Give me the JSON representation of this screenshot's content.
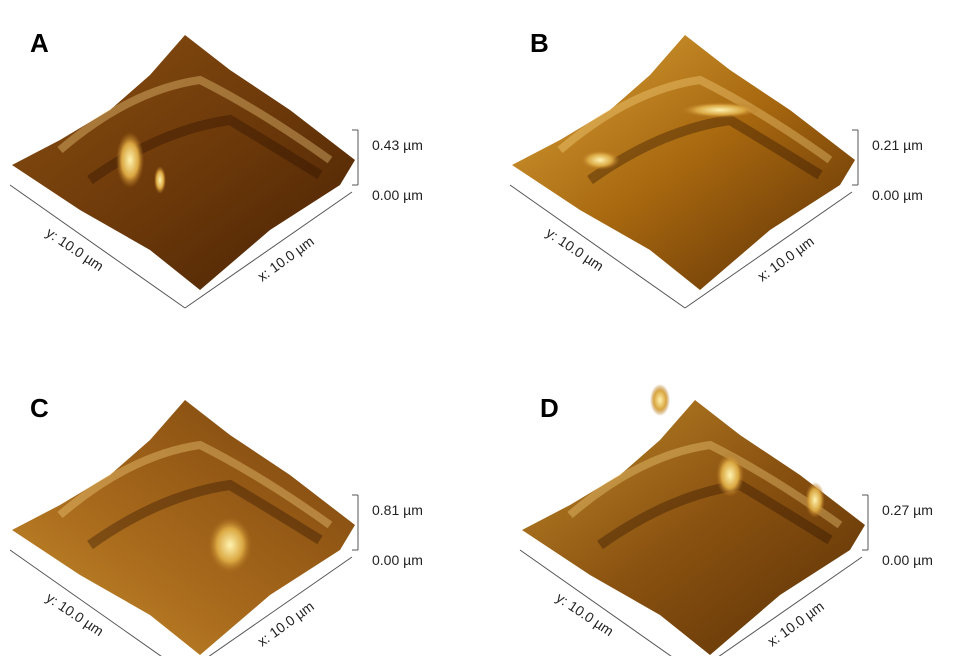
{
  "panels": [
    {
      "label": "A",
      "z_top": "0.43 µm",
      "z_bottom": "0.00 µm",
      "y_axis": "y: 10.0 µm",
      "x_axis": "x: 10.0 µm"
    },
    {
      "label": "B",
      "z_top": "0.21 µm",
      "z_bottom": "0.00 µm",
      "y_axis": "y: 10.0 µm",
      "x_axis": "x: 10.0 µm"
    },
    {
      "label": "C",
      "z_top": "0.81 µm",
      "z_bottom": "0.00 µm",
      "y_axis": "y: 10.0 µm",
      "x_axis": "x: 10.0 µm"
    },
    {
      "label": "D",
      "z_top": "0.27 µm",
      "z_bottom": "0.00 µm",
      "y_axis": "y: 10.0 µm",
      "x_axis": "x: 10.0 µm"
    }
  ]
}
